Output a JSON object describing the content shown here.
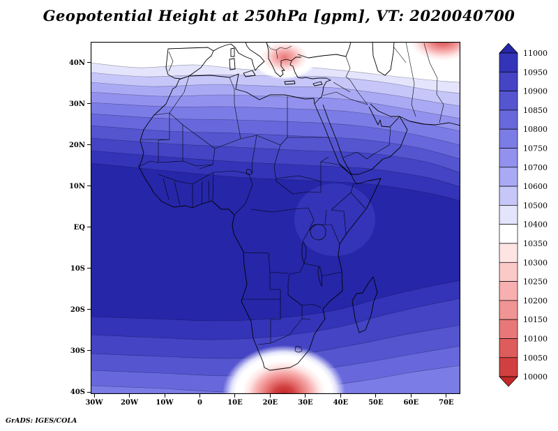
{
  "title": "Geopotential Height at 250hPa [gpm], VT: 2020040700",
  "source_note": "GrADS: IGES/COLA",
  "map": {
    "lat_ticks": [
      {
        "label": "40N",
        "value": 40
      },
      {
        "label": "30N",
        "value": 30
      },
      {
        "label": "20N",
        "value": 20
      },
      {
        "label": "10N",
        "value": 10
      },
      {
        "label": "EQ",
        "value": 0
      },
      {
        "label": "10S",
        "value": -10
      },
      {
        "label": "20S",
        "value": -20
      },
      {
        "label": "30S",
        "value": -30
      },
      {
        "label": "40S",
        "value": -40
      }
    ],
    "lon_ticks": [
      {
        "label": "30W",
        "value": -30
      },
      {
        "label": "20W",
        "value": -20
      },
      {
        "label": "10W",
        "value": -10
      },
      {
        "label": "0",
        "value": 0
      },
      {
        "label": "10E",
        "value": 10
      },
      {
        "label": "20E",
        "value": 20
      },
      {
        "label": "30E",
        "value": 30
      },
      {
        "label": "40E",
        "value": 40
      },
      {
        "label": "50E",
        "value": 50
      },
      {
        "label": "60E",
        "value": 60
      },
      {
        "label": "70E",
        "value": 70
      }
    ]
  },
  "colorbar": {
    "labels_top_to_bottom": [
      "11000",
      "10950",
      "10900",
      "10850",
      "10800",
      "10750",
      "10700",
      "10600",
      "10500",
      "10400",
      "10350",
      "10300",
      "10250",
      "10200",
      "10150",
      "10100",
      "10050",
      "10000"
    ],
    "colors_top_to_bottom": [
      "#2626a8",
      "#3434b8",
      "#4444c4",
      "#5555d0",
      "#6868dc",
      "#7c7ce6",
      "#9292ee",
      "#aaaaf4",
      "#c6c6f8",
      "#e4e4fc",
      "#ffffff",
      "#ffe4e4",
      "#fcc9c9",
      "#f7afaf",
      "#f09494",
      "#e87878",
      "#dd5c5c",
      "#d14040",
      "#c22828"
    ]
  },
  "chart_data": {
    "type": "heatmap",
    "subtype": "filled-contour-map",
    "title": "Geopotential Height at 250hPa [gpm], VT: 2020040700",
    "variable": "Geopotential Height",
    "level": "250hPa",
    "units": "gpm",
    "valid_time": "2020040700",
    "region": {
      "lon_west": "30W",
      "lon_east": "~75E",
      "lat_south": "40S",
      "lat_north": "~45N"
    },
    "contour_levels": [
      10000,
      10050,
      10100,
      10150,
      10200,
      10250,
      10300,
      10350,
      10400,
      10500,
      10600,
      10700,
      10750,
      10800,
      10850,
      10900,
      10950,
      11000
    ],
    "legend_position": "right-vertical-colorbar",
    "features": [
      {
        "kind": "max",
        "description": "Broad tropical maximum >= 11000 gpm spanning roughly 18N to 20S, darkest over the tropical Atlantic and central Africa"
      },
      {
        "kind": "gradient",
        "description": "Heights decrease poleward; white band (~10400-10500 gpm) near 35N-45N across the Mediterranean"
      },
      {
        "kind": "min",
        "description": "Cut-off low (~10200-10350 gpm, pink/red) centered over the Aegean Sea / western Turkey near 25-33E, 38-45N"
      },
      {
        "kind": "min",
        "description": "Low (~10100-10300 gpm, red) entering the northeast corner of the domain near 58-70E, 45N"
      },
      {
        "kind": "min",
        "description": "Low (~10100-10300 gpm, red core with white ring) south of South Africa near 20-28E, 40S"
      },
      {
        "kind": "gradient",
        "description": "Southern mid-latitude bands ~10750-10950 gpm between 20S and 40S"
      }
    ]
  }
}
